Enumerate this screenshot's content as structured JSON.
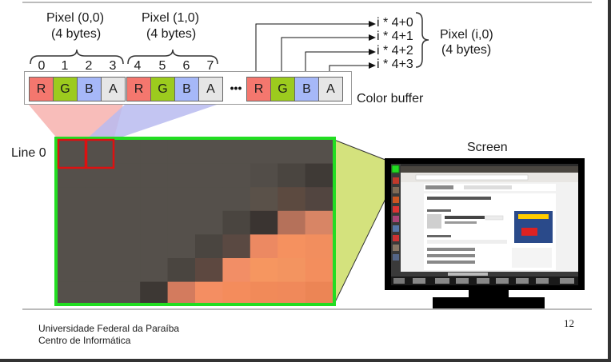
{
  "pixel0": {
    "title": "Pixel (0,0)",
    "size": "(4 bytes)"
  },
  "pixel1": {
    "title": "Pixel (1,0)",
    "size": "(4 bytes)"
  },
  "pixelI": {
    "title": "Pixel (i,0)",
    "size": "(4 bytes)"
  },
  "indices": [
    "0",
    "1",
    "2",
    "3",
    "4",
    "5",
    "6",
    "7"
  ],
  "bufferCells": [
    {
      "label": "R",
      "color": "#f4776e"
    },
    {
      "label": "G",
      "color": "#9ccb1e"
    },
    {
      "label": "B",
      "color": "#a6b8f8"
    },
    {
      "label": "A",
      "color": "#e6e6e6"
    },
    {
      "label": "R",
      "color": "#f4776e"
    },
    {
      "label": "G",
      "color": "#9ccb1e"
    },
    {
      "label": "B",
      "color": "#a6b8f8"
    },
    {
      "label": "A",
      "color": "#e6e6e6"
    },
    {
      "label": "R",
      "color": "#f4776e"
    },
    {
      "label": "G",
      "color": "#9ccb1e"
    },
    {
      "label": "B",
      "color": "#a6b8f8"
    },
    {
      "label": "A",
      "color": "#e6e6e6"
    }
  ],
  "ellipsis": "•••",
  "offsets": [
    "i * 4+0",
    "i * 4+1",
    "i * 4+2",
    "i * 4+3"
  ],
  "colorBufferLabel": "Color buffer",
  "lineLabel": "Line 0",
  "screenLabel": "Screen",
  "footer": {
    "line1": "Universidade Federal da Paraíba",
    "line2": "Centro de Informática"
  },
  "pageNumber": "12",
  "colors": {
    "zoomBorder": "#22dd22",
    "pixelHighlight": "#dd1111",
    "zoomFill": "#ccdd66",
    "projPink": "#f7b6b2",
    "projBlue": "#b9bbf0",
    "screenBezel": "#000000"
  },
  "zoomGrid": [
    [
      "#55504b",
      "#55504b",
      "#55504b",
      "#55504b",
      "#55504b",
      "#55504b",
      "#55504b",
      "#55504b",
      "#55504b",
      "#55504b"
    ],
    [
      "#55504b",
      "#55504b",
      "#55504b",
      "#55504b",
      "#55504b",
      "#55504b",
      "#55504b",
      "#524d48",
      "#4a4540",
      "#3f3a36"
    ],
    [
      "#55504b",
      "#55504b",
      "#55504b",
      "#55504b",
      "#55504b",
      "#55504b",
      "#55504b",
      "#5a5149",
      "#5c4a40",
      "#524540"
    ],
    [
      "#55504b",
      "#55504b",
      "#55504b",
      "#55504b",
      "#55504b",
      "#55504b",
      "#4a4540",
      "#3a3431",
      "#b5715a",
      "#d88565"
    ],
    [
      "#55504b",
      "#55504b",
      "#55504b",
      "#55504b",
      "#55504b",
      "#4a4540",
      "#5a4942",
      "#ec8962",
      "#f5915f",
      "#f28e5e"
    ],
    [
      "#55504b",
      "#55504b",
      "#55504b",
      "#55504b",
      "#4a4540",
      "#5d4840",
      "#f28e66",
      "#f69660",
      "#f39460",
      "#f38e5d"
    ],
    [
      "#55504b",
      "#55504b",
      "#55504b",
      "#3d3834",
      "#d37b5e",
      "#f48e62",
      "#f48c5c",
      "#f18a59",
      "#f0895a",
      "#ec8555"
    ]
  ]
}
